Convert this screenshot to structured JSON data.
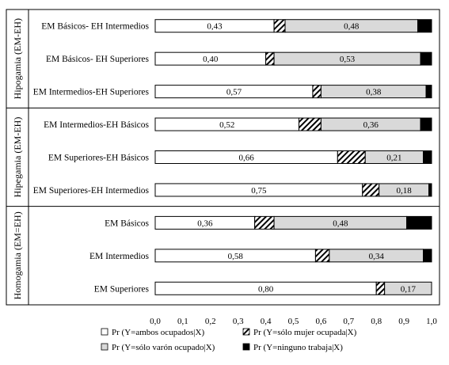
{
  "chart_data": {
    "type": "bar",
    "orientation": "horizontal",
    "stacked": true,
    "xlim": [
      0,
      1
    ],
    "xticks": [
      "0,0",
      "0,1",
      "0,2",
      "0,3",
      "0,4",
      "0,5",
      "0,6",
      "0,7",
      "0,8",
      "0,9",
      "1,0"
    ],
    "grid": false,
    "legend_position": "bottom",
    "groups": [
      {
        "label": "Hipogamia (EM-EH)",
        "categories": [
          "EM Básicos- EH Intermedios",
          "EM Básicos- EH Superiores",
          "EM Intermedios-EH Superiores"
        ]
      },
      {
        "label": "Hipegamia (EM-EH)",
        "categories": [
          "EM Intermedios-EH Básicos",
          "EM Superiores-EH Básicos",
          "EM Superiores-EH Intermedios"
        ]
      },
      {
        "label": "Homogamia (EM=EH)",
        "categories": [
          "EM Básicos",
          "EM Intermedios",
          "EM Superiores"
        ]
      }
    ],
    "categories": [
      "EM Básicos- EH Intermedios",
      "EM Básicos- EH Superiores",
      "EM Intermedios-EH Superiores",
      "EM Intermedios-EH Básicos",
      "EM Superiores-EH Básicos",
      "EM Superiores-EH Intermedios",
      "EM Básicos",
      "EM Intermedios",
      "EM Superiores"
    ],
    "series": [
      {
        "name": "Pr (Y=ambos ocupados|X)",
        "fill": "#ffffff",
        "pattern": "none",
        "values": [
          0.43,
          0.4,
          0.57,
          0.52,
          0.66,
          0.75,
          0.36,
          0.58,
          0.8
        ],
        "labels": [
          "0,43",
          "0,40",
          "0,57",
          "0,52",
          "0,66",
          "0,75",
          "0,36",
          "0,58",
          "0,80"
        ]
      },
      {
        "name": "Pr (Y=sólo mujer ocupada|X)",
        "fill": "#ffffff",
        "pattern": "diagonal",
        "values": [
          0.04,
          0.03,
          0.03,
          0.08,
          0.1,
          0.06,
          0.07,
          0.05,
          0.03
        ],
        "labels": [
          "",
          "",
          "",
          "",
          "",
          "",
          "",
          "",
          ""
        ]
      },
      {
        "name": "Pr (Y=sólo varón ocupado|X)",
        "fill": "#d9d9d9",
        "pattern": "none",
        "values": [
          0.48,
          0.53,
          0.38,
          0.36,
          0.21,
          0.18,
          0.48,
          0.34,
          0.17
        ],
        "labels": [
          "0,48",
          "0,53",
          "0,38",
          "0,36",
          "0,21",
          "0,18",
          "0,48",
          "0,34",
          "0,17"
        ]
      },
      {
        "name": "Pr (Y=ninguno trabaja|X)",
        "fill": "#000000",
        "pattern": "none",
        "values": [
          0.05,
          0.04,
          0.02,
          0.04,
          0.03,
          0.01,
          0.09,
          0.03,
          0.0
        ],
        "labels": [
          "",
          "",
          "",
          "",
          "",
          "",
          "",
          "",
          ""
        ]
      }
    ]
  }
}
